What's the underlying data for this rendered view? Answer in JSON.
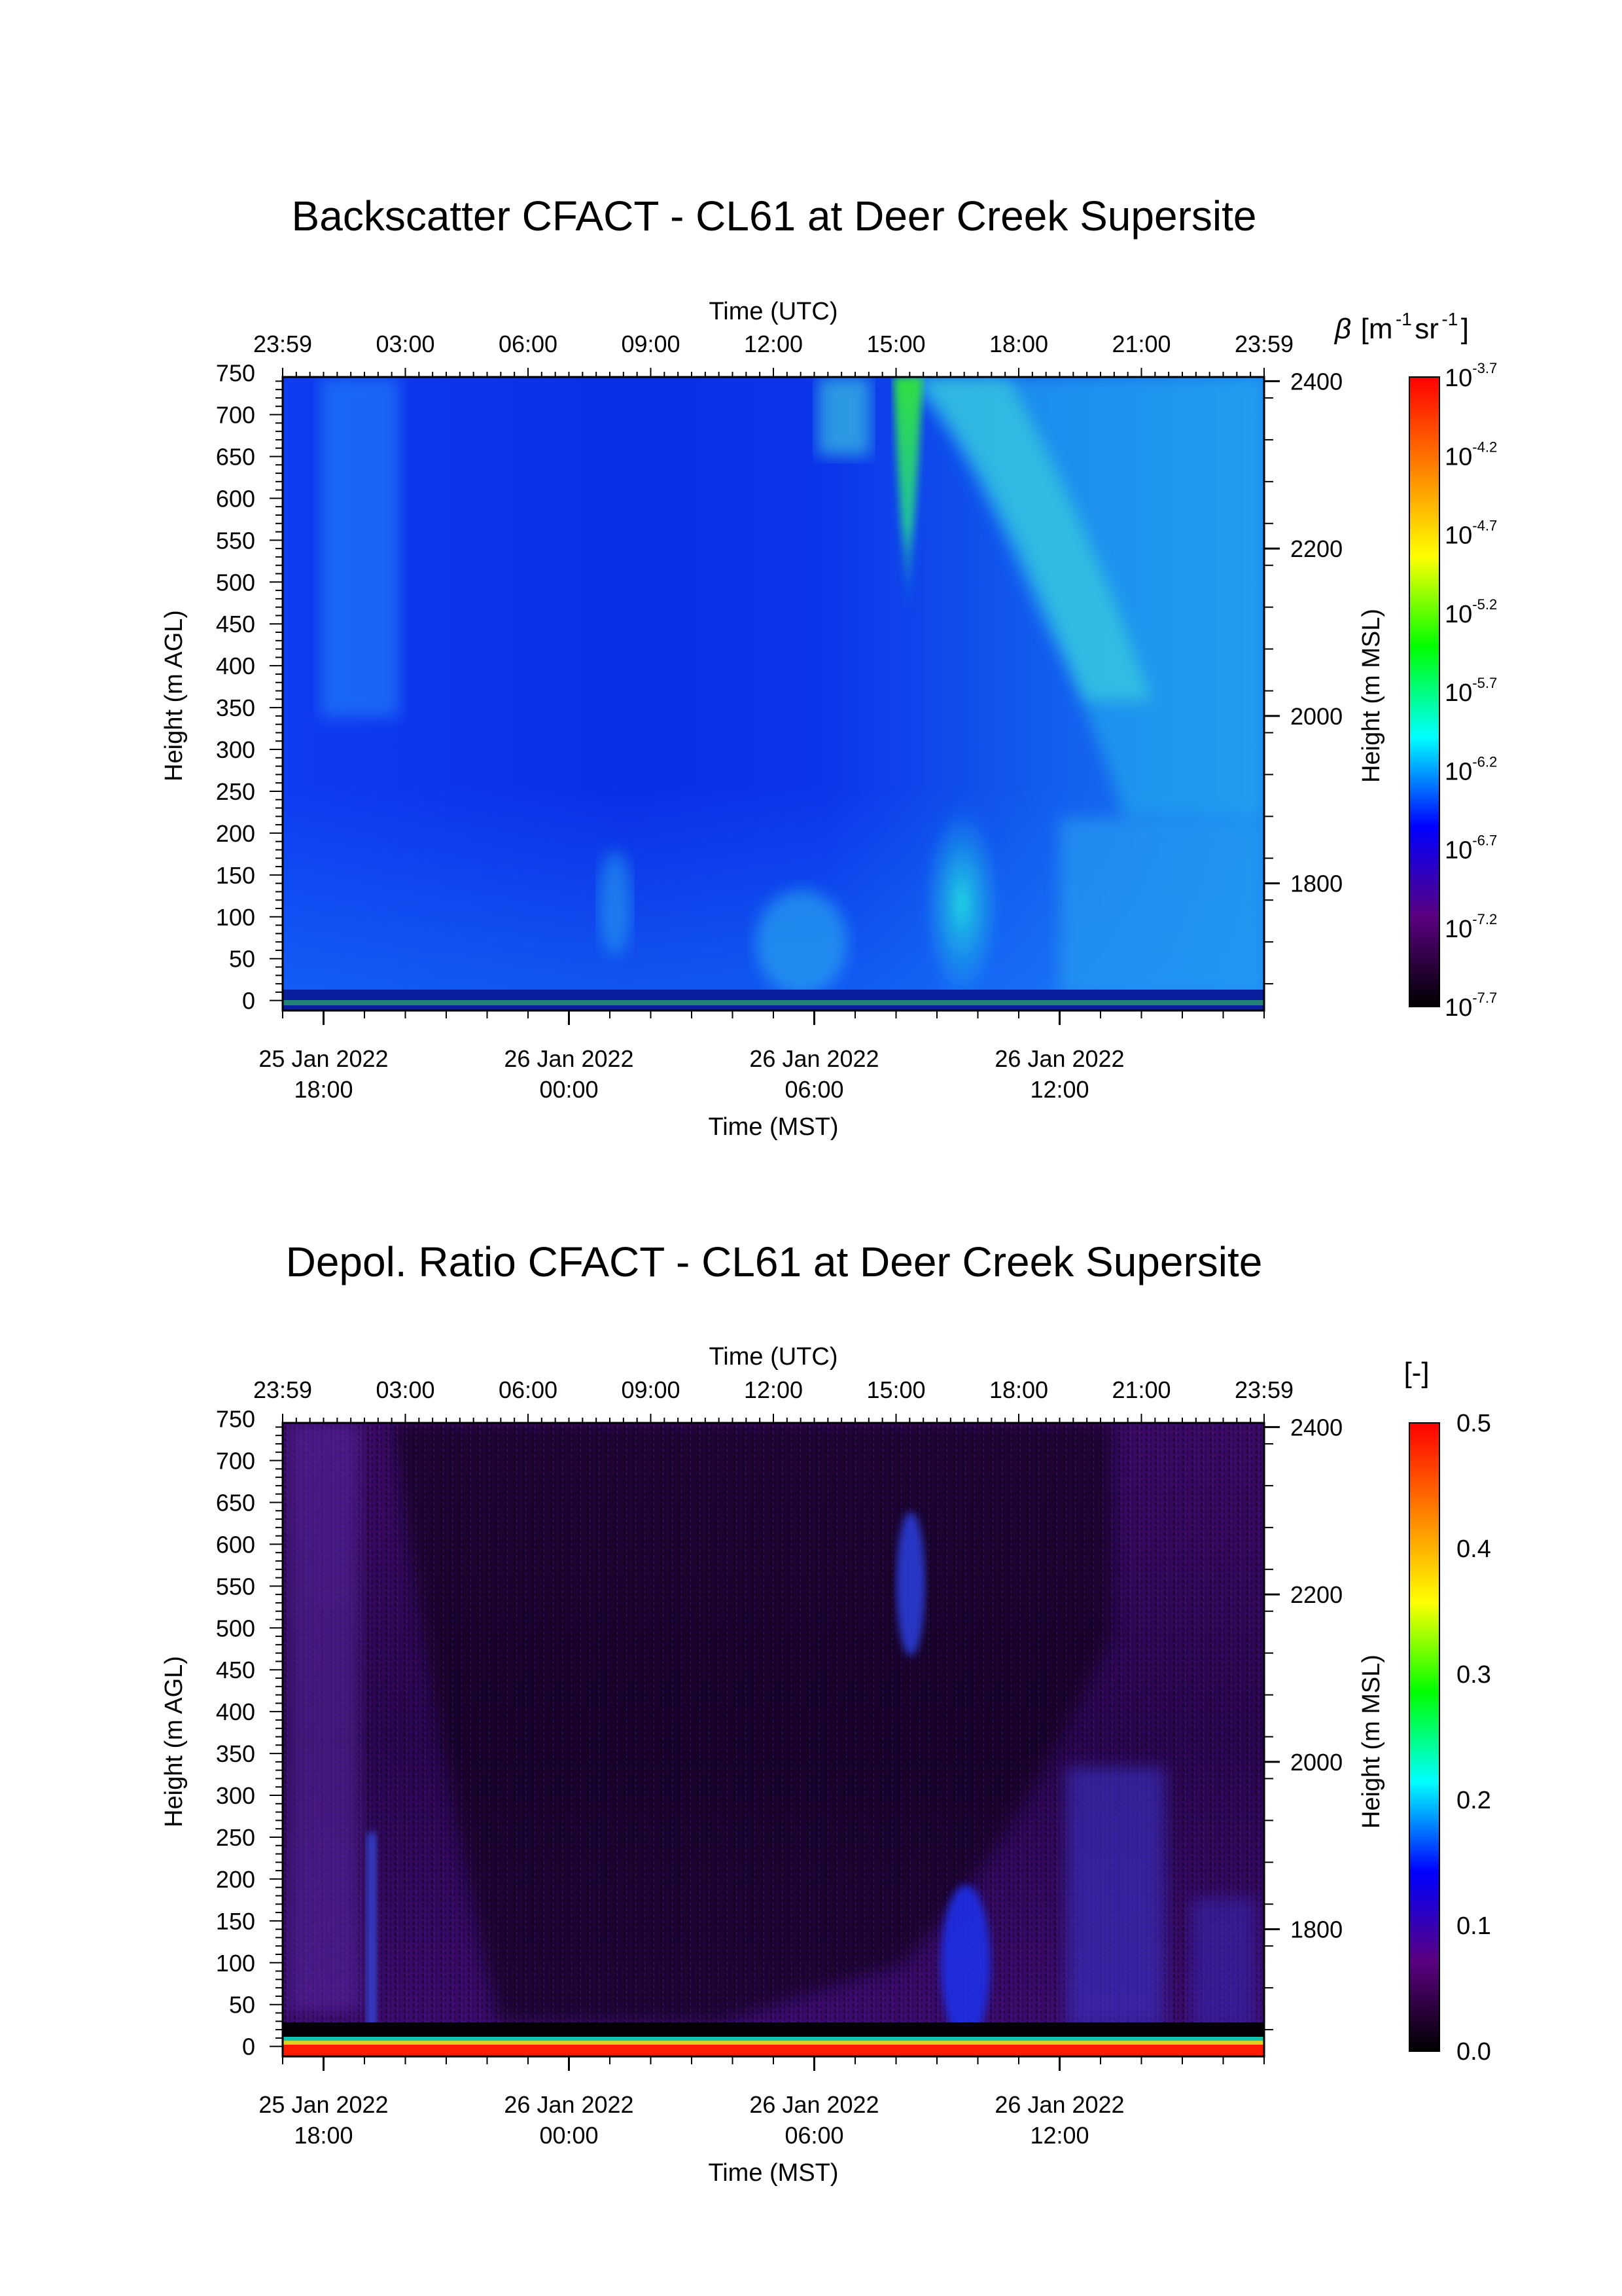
{
  "chart_data": [
    {
      "type": "heatmap",
      "title": "Backscatter CFACT - CL61 at Deer Creek Supersite",
      "top_xlabel": "Time (UTC)",
      "bottom_xlabel": "Time (MST)",
      "ylabel": "Height (m AGL)",
      "y2label": "Height (m MSL)",
      "top_ticks": [
        "23:59",
        "03:00",
        "06:00",
        "09:00",
        "12:00",
        "15:00",
        "18:00",
        "21:00",
        "23:59"
      ],
      "top_tick_hours": [
        0,
        3,
        6,
        9,
        12,
        15,
        18,
        21,
        24
      ],
      "bottom_ticks": [
        {
          "date": "25 Jan 2022",
          "time": "18:00",
          "hour_utc": 1
        },
        {
          "date": "26 Jan 2022",
          "time": "00:00",
          "hour_utc": 7
        },
        {
          "date": "26 Jan 2022",
          "time": "06:00",
          "hour_utc": 13
        },
        {
          "date": "26 Jan 2022",
          "time": "12:00",
          "hour_utc": 19
        }
      ],
      "y_ticks": [
        0,
        50,
        100,
        150,
        200,
        250,
        300,
        350,
        400,
        450,
        500,
        550,
        600,
        650,
        700,
        750
      ],
      "ylim": [
        -12,
        745
      ],
      "y2_ticks": [
        1800,
        2000,
        2200,
        2400
      ],
      "y2_offset": 1660,
      "xlim": [
        0,
        24
      ],
      "colorbar": {
        "label_symbol": "β",
        "label_unit": "[m",
        "label_exp1": "-1",
        "label_mid": " sr",
        "label_exp2": "-1",
        "label_close": "]",
        "scale": "log",
        "tick_exponents": [
          "-3.7",
          "-4.2",
          "-4.7",
          "-5.2",
          "-5.7",
          "-6.2",
          "-6.7",
          "-7.2",
          "-7.7"
        ],
        "tick_base": "10",
        "range": [
          -7.7,
          -3.7
        ],
        "colors": [
          "#000000",
          "#5a0080",
          "#0000ff",
          "#00ffff",
          "#00ff00",
          "#ffff00",
          "#ff8000",
          "#ff0000"
        ]
      }
    },
    {
      "type": "heatmap",
      "title": "Depol. Ratio CFACT - CL61 at Deer Creek Supersite",
      "top_xlabel": "Time (UTC)",
      "bottom_xlabel": "Time (MST)",
      "ylabel": "Height (m AGL)",
      "y2label": "Height (m MSL)",
      "top_ticks": [
        "23:59",
        "03:00",
        "06:00",
        "09:00",
        "12:00",
        "15:00",
        "18:00",
        "21:00",
        "23:59"
      ],
      "top_tick_hours": [
        0,
        3,
        6,
        9,
        12,
        15,
        18,
        21,
        24
      ],
      "bottom_ticks": [
        {
          "date": "25 Jan 2022",
          "time": "18:00",
          "hour_utc": 1
        },
        {
          "date": "26 Jan 2022",
          "time": "00:00",
          "hour_utc": 7
        },
        {
          "date": "26 Jan 2022",
          "time": "06:00",
          "hour_utc": 13
        },
        {
          "date": "26 Jan 2022",
          "time": "12:00",
          "hour_utc": 19
        }
      ],
      "y_ticks": [
        0,
        50,
        100,
        150,
        200,
        250,
        300,
        350,
        400,
        450,
        500,
        550,
        600,
        650,
        700,
        750
      ],
      "ylim": [
        -12,
        745
      ],
      "y2_ticks": [
        1800,
        2000,
        2200,
        2400
      ],
      "y2_offset": 1660,
      "xlim": [
        0,
        24
      ],
      "colorbar": {
        "label": "[-]",
        "scale": "linear",
        "ticks": [
          "0.5",
          "0.4",
          "0.3",
          "0.2",
          "0.1",
          "0.0"
        ],
        "tick_values": [
          0.5,
          0.4,
          0.3,
          0.2,
          0.1,
          0.0
        ],
        "range": [
          0,
          0.5
        ],
        "colors": [
          "#000000",
          "#5a0080",
          "#0000ff",
          "#00ffff",
          "#00ff00",
          "#ffff00",
          "#ff8000",
          "#ff0000"
        ]
      }
    }
  ]
}
